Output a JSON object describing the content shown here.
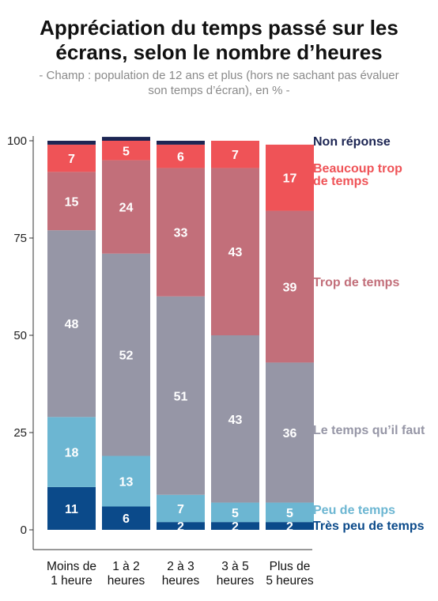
{
  "title_lines": [
    "Appréciation du temps passé sur les",
    "écrans, selon le nombre d’heures"
  ],
  "subtitle_lines": [
    "- Champ : population de 12 ans et plus (hors ne sachant pas évaluer",
    "son temps d’écran), en % -"
  ],
  "chart_data": {
    "type": "bar",
    "stacked": true,
    "categories": [
      [
        "Moins de",
        "1 heure"
      ],
      [
        "1 à 2",
        "heures"
      ],
      [
        "2 à 3",
        "heures"
      ],
      [
        "3 à 5",
        "heures"
      ],
      [
        "Plus de",
        "5 heures"
      ]
    ],
    "ylim": [
      0,
      100
    ],
    "yticks": [
      0,
      25,
      50,
      75,
      100
    ],
    "grid": false,
    "legend_placement": "right",
    "series": [
      {
        "name": "Très peu de temps",
        "label_lines": [
          "Très peu de temps"
        ],
        "color": "#0b4a8a",
        "values": [
          11,
          6,
          2,
          2,
          2
        ]
      },
      {
        "name": "Peu de temps",
        "label_lines": [
          "Peu de temps"
        ],
        "color": "#6cb6d2",
        "values": [
          18,
          13,
          7,
          5,
          5
        ]
      },
      {
        "name": "Le temps qu’il faut",
        "label_lines": [
          "Le temps qu’il faut"
        ],
        "color": "#9696a6",
        "values": [
          48,
          52,
          51,
          43,
          36
        ]
      },
      {
        "name": "Trop de temps",
        "label_lines": [
          "Trop de temps"
        ],
        "color": "#c26f7a",
        "values": [
          15,
          24,
          33,
          43,
          39
        ]
      },
      {
        "name": "Beaucoup trop de temps",
        "label_lines": [
          "Beaucoup trop",
          "de temps"
        ],
        "color": "#ef5357",
        "values": [
          7,
          5,
          6,
          7,
          17
        ]
      },
      {
        "name": "Non réponse",
        "label_lines": [
          "Non réponse"
        ],
        "color": "#1c2553",
        "values": [
          1,
          1,
          1,
          0,
          0
        ]
      }
    ]
  }
}
